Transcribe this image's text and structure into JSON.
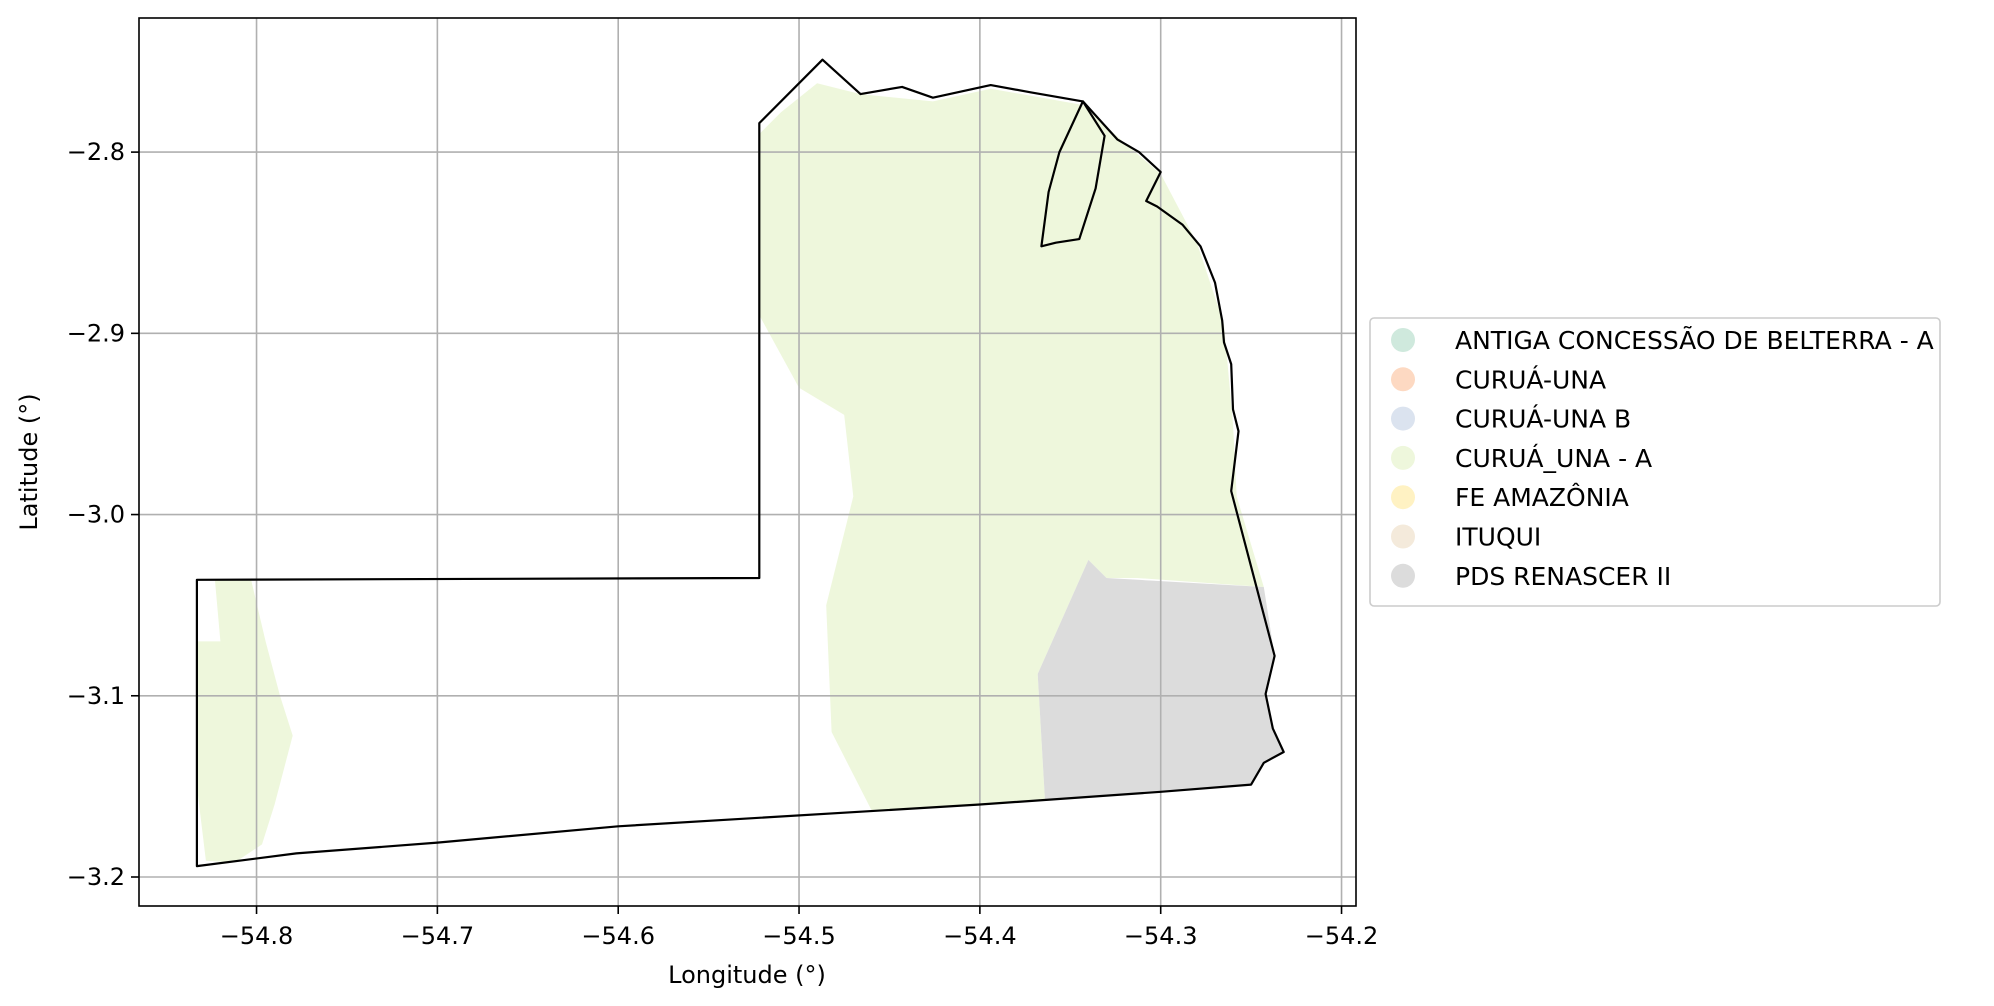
{
  "map": {
    "xlabel": "Longitude (°)",
    "ylabel": "Latitude (°)",
    "xlim": [
      -54.865,
      -54.192
    ],
    "ylim": [
      -3.216,
      -2.726
    ],
    "grid": true,
    "x_ticks": [
      {
        "value": -54.8,
        "label": "−54.8"
      },
      {
        "value": -54.7,
        "label": "−54.7"
      },
      {
        "value": -54.6,
        "label": "−54.6"
      },
      {
        "value": -54.5,
        "label": "−54.5"
      },
      {
        "value": -54.4,
        "label": "−54.4"
      },
      {
        "value": -54.3,
        "label": "−54.3"
      },
      {
        "value": -54.2,
        "label": "−54.2"
      }
    ],
    "y_ticks": [
      {
        "value": -2.8,
        "label": "−2.8"
      },
      {
        "value": -2.9,
        "label": "−2.9"
      },
      {
        "value": -3.0,
        "label": "−3.0"
      },
      {
        "value": -3.1,
        "label": "−3.1"
      },
      {
        "value": -3.2,
        "label": "−3.2"
      }
    ],
    "legend_position": "right-center",
    "legend": [
      {
        "label": "ANTIGA CONCESSÃO DE BELTERRA - A",
        "color": "#cfe9dd"
      },
      {
        "label": "CURUÁ-UNA",
        "color": "#fdd9c2"
      },
      {
        "label": "CURUÁ-UNA B",
        "color": "#dbe3ef"
      },
      {
        "label": "CURUÁ_UNA - A",
        "color": "#eef7dc"
      },
      {
        "label": "FE AMAZÔNIA",
        "color": "#fff2c3"
      },
      {
        "label": "ITUQUI",
        "color": "#f4eadb"
      },
      {
        "label": "PDS RENASCER II",
        "color": "#dcdcdc"
      }
    ],
    "boundary": [
      [
        -54.833,
        -3.194
      ],
      [
        -54.833,
        -3.036
      ],
      [
        -54.522,
        -3.035
      ],
      [
        -54.522,
        -2.784
      ],
      [
        -54.487,
        -2.749
      ],
      [
        -54.466,
        -2.768
      ],
      [
        -54.443,
        -2.764
      ],
      [
        -54.426,
        -2.77
      ],
      [
        -54.394,
        -2.763
      ],
      [
        -54.372,
        -2.767
      ],
      [
        -54.343,
        -2.772
      ],
      [
        -54.324,
        -2.793
      ],
      [
        -54.312,
        -2.8
      ],
      [
        -54.3,
        -2.811
      ],
      [
        -54.308,
        -2.827
      ],
      [
        -54.302,
        -2.83
      ],
      [
        -54.288,
        -2.84
      ],
      [
        -54.278,
        -2.852
      ],
      [
        -54.27,
        -2.872
      ],
      [
        -54.266,
        -2.893
      ],
      [
        -54.265,
        -2.905
      ],
      [
        -54.261,
        -2.917
      ],
      [
        -54.26,
        -2.942
      ],
      [
        -54.257,
        -2.954
      ],
      [
        -54.261,
        -2.987
      ],
      [
        -54.237,
        -3.078
      ],
      [
        -54.242,
        -3.099
      ],
      [
        -54.238,
        -3.118
      ],
      [
        -54.232,
        -3.131
      ],
      [
        -54.243,
        -3.137
      ],
      [
        -54.25,
        -3.149
      ],
      [
        -54.3,
        -3.153
      ],
      [
        -54.4,
        -3.16
      ],
      [
        -54.6,
        -3.172
      ],
      [
        -54.7,
        -3.181
      ],
      [
        -54.778,
        -3.187
      ],
      [
        -54.833,
        -3.194
      ]
    ],
    "inner_parcel": [
      [
        -54.343,
        -2.772
      ],
      [
        -54.356,
        -2.8
      ],
      [
        -54.362,
        -2.822
      ],
      [
        -54.366,
        -2.852
      ],
      [
        -54.358,
        -2.85
      ],
      [
        -54.345,
        -2.848
      ],
      [
        -54.336,
        -2.82
      ],
      [
        -54.331,
        -2.791
      ],
      [
        -54.343,
        -2.772
      ]
    ],
    "zones": [
      {
        "name": "CURUÁ_UNA - A",
        "color": "#eef7dc",
        "polygon": [
          [
            -54.522,
            -2.79
          ],
          [
            -54.51,
            -2.778
          ],
          [
            -54.49,
            -2.762
          ],
          [
            -54.466,
            -2.768
          ],
          [
            -54.426,
            -2.772
          ],
          [
            -54.394,
            -2.765
          ],
          [
            -54.343,
            -2.774
          ],
          [
            -54.32,
            -2.795
          ],
          [
            -54.3,
            -2.812
          ],
          [
            -54.28,
            -2.85
          ],
          [
            -54.265,
            -2.895
          ],
          [
            -54.26,
            -2.95
          ],
          [
            -54.258,
            -2.99
          ],
          [
            -54.243,
            -3.04
          ],
          [
            -54.313,
            -3.035
          ],
          [
            -54.33,
            -3.035
          ],
          [
            -54.34,
            -3.025
          ],
          [
            -54.368,
            -3.088
          ],
          [
            -54.364,
            -3.158
          ],
          [
            -54.4,
            -3.16
          ],
          [
            -54.46,
            -3.163
          ],
          [
            -54.482,
            -3.12
          ],
          [
            -54.485,
            -3.05
          ],
          [
            -54.47,
            -2.99
          ],
          [
            -54.475,
            -2.945
          ],
          [
            -54.5,
            -2.93
          ],
          [
            -54.522,
            -2.89
          ]
        ]
      },
      {
        "name": "CURUÁ_UNA - A",
        "color": "#eef7dc",
        "polygon": [
          [
            -54.823,
            -3.036
          ],
          [
            -54.803,
            -3.036
          ],
          [
            -54.795,
            -3.07
          ],
          [
            -54.787,
            -3.1
          ],
          [
            -54.78,
            -3.122
          ],
          [
            -54.79,
            -3.16
          ],
          [
            -54.797,
            -3.182
          ],
          [
            -54.812,
            -3.192
          ],
          [
            -54.828,
            -3.191
          ],
          [
            -54.833,
            -3.15
          ],
          [
            -54.833,
            -3.07
          ],
          [
            -54.82,
            -3.07
          ]
        ]
      },
      {
        "name": "PDS RENASCER II",
        "color": "#dcdcdc",
        "polygon": [
          [
            -54.34,
            -3.025
          ],
          [
            -54.33,
            -3.035
          ],
          [
            -54.243,
            -3.04
          ],
          [
            -54.237,
            -3.078
          ],
          [
            -54.242,
            -3.099
          ],
          [
            -54.238,
            -3.118
          ],
          [
            -54.232,
            -3.131
          ],
          [
            -54.243,
            -3.137
          ],
          [
            -54.25,
            -3.149
          ],
          [
            -54.3,
            -3.153
          ],
          [
            -54.364,
            -3.158
          ],
          [
            -54.368,
            -3.088
          ]
        ]
      }
    ]
  }
}
